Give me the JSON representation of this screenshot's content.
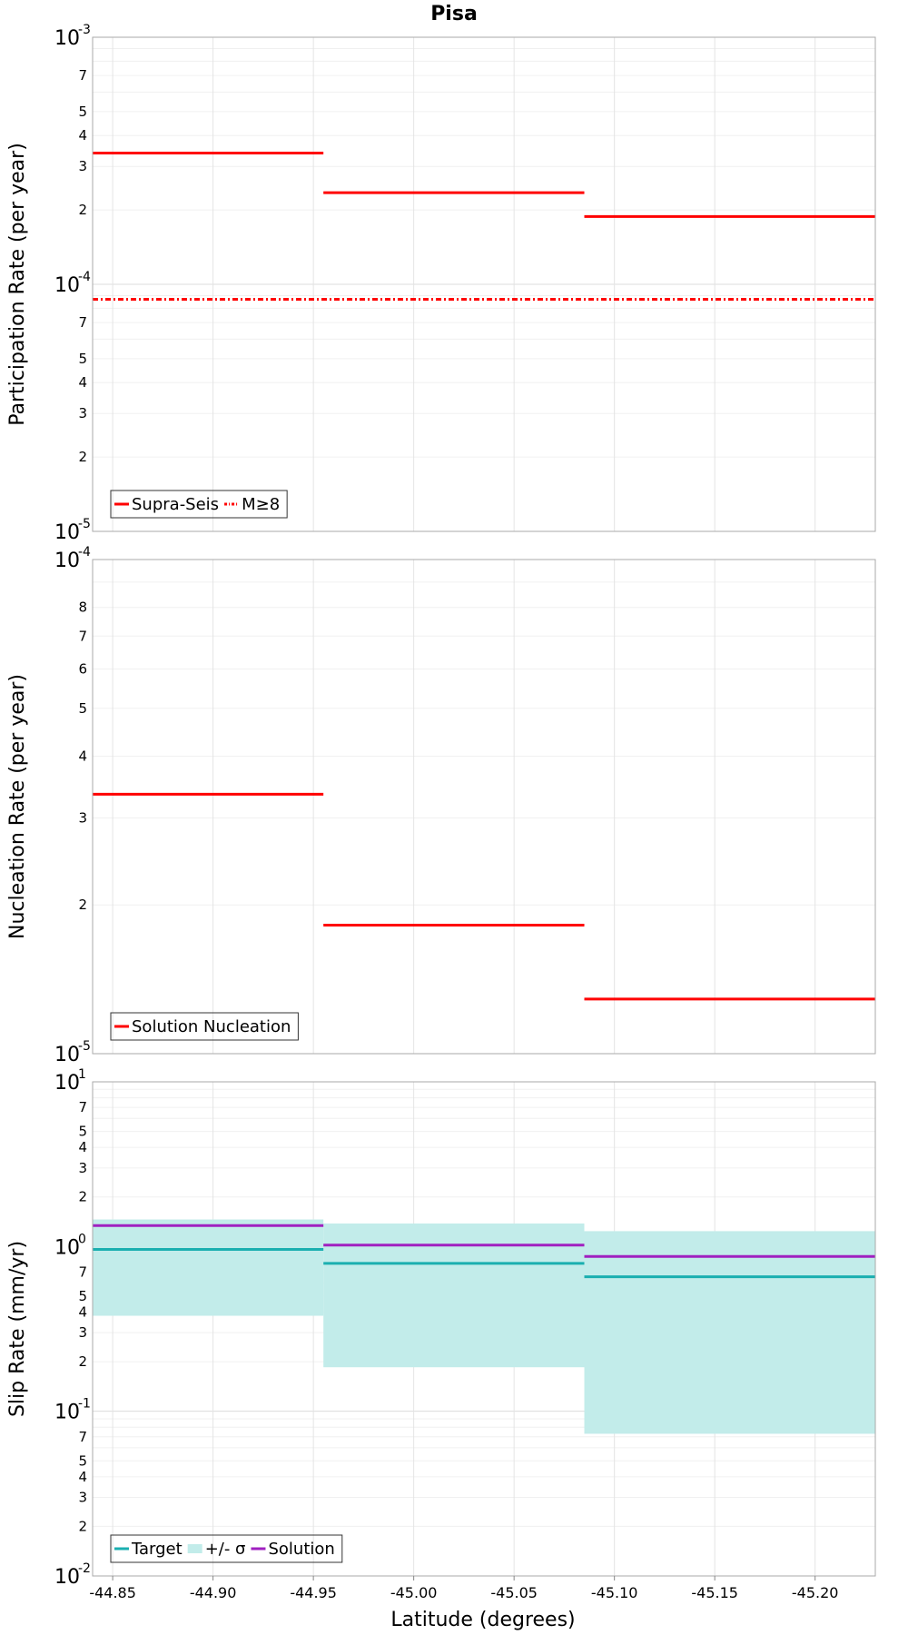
{
  "title": "Pisa",
  "xlabel": "Latitude (degrees)",
  "chart_data": [
    {
      "type": "line",
      "ylabel": "Participation Rate (per year)",
      "yscale": "log",
      "ylim": [
        1e-05,
        0.001
      ],
      "xlim": [
        -44.84,
        -45.23
      ],
      "xticks": [
        -44.85,
        -44.9,
        -44.95,
        -45.0,
        -45.05,
        -45.1,
        -45.15,
        -45.2
      ],
      "legend_position": "bottom-left",
      "series": [
        {
          "name": "Supra-Seis",
          "style": "solid",
          "color": "#ff0000",
          "steps": [
            {
              "x0": -44.84,
              "x1": -44.955,
              "y": 0.00034
            },
            {
              "x0": -44.955,
              "x1": -45.085,
              "y": 0.000235
            },
            {
              "x0": -45.085,
              "x1": -45.23,
              "y": 0.000188
            }
          ]
        },
        {
          "name": "M≥8",
          "style": "dashdot",
          "color": "#ff0000",
          "steps": [
            {
              "x0": -44.84,
              "x1": -45.23,
              "y": 8.7e-05
            }
          ]
        }
      ]
    },
    {
      "type": "line",
      "ylabel": "Nucleation Rate (per year)",
      "yscale": "log",
      "ylim": [
        1e-05,
        0.0001
      ],
      "xlim": [
        -44.84,
        -45.23
      ],
      "xticks": [
        -44.85,
        -44.9,
        -44.95,
        -45.0,
        -45.05,
        -45.1,
        -45.15,
        -45.2
      ],
      "legend_position": "bottom-left",
      "series": [
        {
          "name": "Solution Nucleation",
          "style": "solid",
          "color": "#ff0000",
          "steps": [
            {
              "x0": -44.84,
              "x1": -44.955,
              "y": 3.35e-05
            },
            {
              "x0": -44.955,
              "x1": -45.085,
              "y": 1.82e-05
            },
            {
              "x0": -45.085,
              "x1": -45.23,
              "y": 1.29e-05
            }
          ]
        }
      ]
    },
    {
      "type": "line",
      "ylabel": "Slip Rate (mm/yr)",
      "yscale": "log",
      "ylim": [
        0.01,
        10
      ],
      "xlim": [
        -44.84,
        -45.23
      ],
      "xticks": [
        -44.85,
        -44.9,
        -44.95,
        -45.0,
        -45.05,
        -45.1,
        -45.15,
        -45.2
      ],
      "legend_position": "bottom-left",
      "band": {
        "name": "+/- σ",
        "color": "#c2ecea",
        "steps": [
          {
            "x0": -44.84,
            "x1": -44.955,
            "low": 0.38,
            "high": 1.46
          },
          {
            "x0": -44.955,
            "x1": -45.085,
            "low": 0.185,
            "high": 1.38
          },
          {
            "x0": -45.085,
            "x1": -45.23,
            "low": 0.073,
            "high": 1.24
          }
        ]
      },
      "series": [
        {
          "name": "Target",
          "style": "solid",
          "color": "#1aafb0",
          "steps": [
            {
              "x0": -44.84,
              "x1": -44.955,
              "y": 0.96
            },
            {
              "x0": -44.955,
              "x1": -45.085,
              "y": 0.79
            },
            {
              "x0": -45.085,
              "x1": -45.23,
              "y": 0.655
            }
          ]
        },
        {
          "name": "Solution",
          "style": "solid",
          "color": "#a020c0",
          "steps": [
            {
              "x0": -44.84,
              "x1": -44.955,
              "y": 1.34
            },
            {
              "x0": -44.955,
              "x1": -45.085,
              "y": 1.02
            },
            {
              "x0": -45.085,
              "x1": -45.23,
              "y": 0.87
            }
          ]
        }
      ]
    }
  ]
}
